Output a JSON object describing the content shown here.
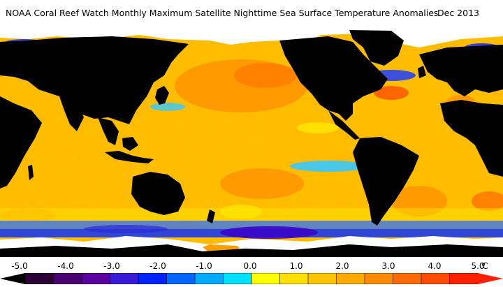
{
  "header": {
    "title": "NOAA Coral Reef Watch Monthly Maximum Satellite Nighttime Sea Surface Temperature Anomalies",
    "date": "Dec 2013"
  },
  "legend": {
    "ticks": [
      "-5.0",
      "-4.0",
      "-3.0",
      "-2.0",
      "-1.0",
      "0.0",
      "1.0",
      "2.0",
      "3.0",
      "4.0",
      "5.0"
    ],
    "unit": "°C",
    "colors": [
      "#2a0036",
      "#4a0070",
      "#5a00a0",
      "#3a1cd8",
      "#0022ff",
      "#0066ff",
      "#00aaff",
      "#00e0ff",
      "#ffff00",
      "#ffe000",
      "#ffc400",
      "#ffaa00",
      "#ff8c00",
      "#ff6a00",
      "#ff4a00",
      "#ff2000"
    ]
  },
  "map": {
    "land_color": "#000000",
    "ice_color": "#ffffff",
    "ocean_base_color": "#ffb800"
  }
}
